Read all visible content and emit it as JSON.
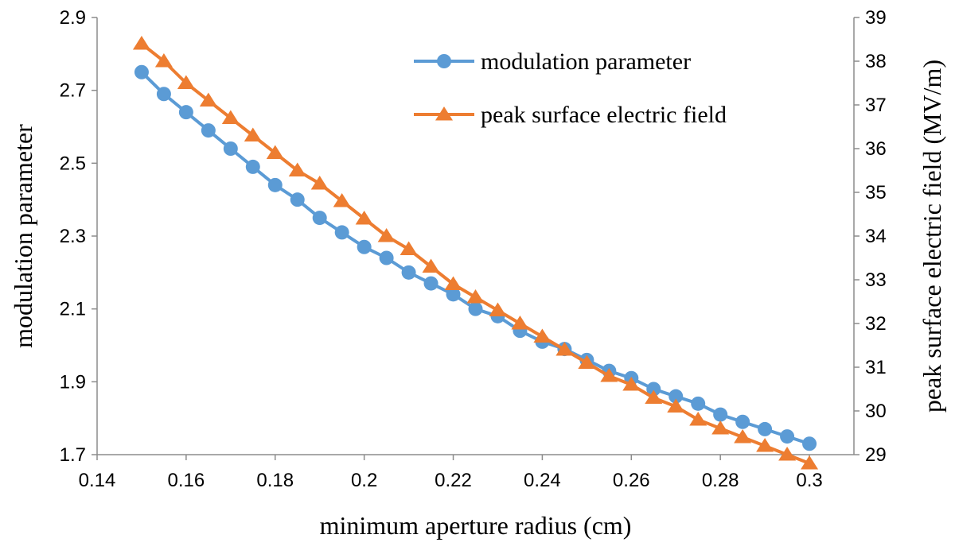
{
  "chart_data": {
    "type": "line",
    "title": "",
    "xlabel": "minimum aperture radius (cm)",
    "ylabel": "modulation parameter",
    "y2label": "peak surface electric field (MV/m)",
    "xlim": [
      0.14,
      0.31
    ],
    "ylim": [
      1.7,
      2.9
    ],
    "y2lim": [
      29,
      39
    ],
    "x_ticks": [
      0.14,
      0.16,
      0.18,
      0.2,
      0.22,
      0.24,
      0.26,
      0.28,
      0.3
    ],
    "x_tick_labels": [
      "0.14",
      "0.16",
      "0.18",
      "0.2",
      "0.22",
      "0.24",
      "0.26",
      "0.28",
      "0.3"
    ],
    "y_ticks": [
      1.7,
      1.9,
      2.1,
      2.3,
      2.5,
      2.7,
      2.9
    ],
    "y_tick_labels": [
      "1.7",
      "1.9",
      "2.1",
      "2.3",
      "2.5",
      "2.7",
      "2.9"
    ],
    "y2_ticks": [
      29,
      30,
      31,
      32,
      33,
      34,
      35,
      36,
      37,
      38,
      39
    ],
    "y2_tick_labels": [
      "29",
      "30",
      "31",
      "32",
      "33",
      "34",
      "35",
      "36",
      "37",
      "38",
      "39"
    ],
    "grid": false,
    "legend_position": "top-right",
    "x": [
      0.15,
      0.155,
      0.16,
      0.165,
      0.17,
      0.175,
      0.18,
      0.185,
      0.19,
      0.195,
      0.2,
      0.205,
      0.21,
      0.215,
      0.22,
      0.225,
      0.23,
      0.235,
      0.24,
      0.245,
      0.25,
      0.255,
      0.26,
      0.265,
      0.27,
      0.275,
      0.28,
      0.285,
      0.29,
      0.295,
      0.3
    ],
    "series": [
      {
        "name": "modulation parameter",
        "axis": "left",
        "color": "#5B9BD5",
        "marker": "circle",
        "values": [
          2.75,
          2.69,
          2.64,
          2.59,
          2.54,
          2.49,
          2.44,
          2.4,
          2.35,
          2.31,
          2.27,
          2.24,
          2.2,
          2.17,
          2.14,
          2.1,
          2.08,
          2.04,
          2.01,
          1.99,
          1.96,
          1.93,
          1.91,
          1.88,
          1.86,
          1.84,
          1.81,
          1.79,
          1.77,
          1.75,
          1.73
        ]
      },
      {
        "name": "peak surface electric field",
        "axis": "right",
        "color": "#ED7D31",
        "marker": "triangle",
        "values": [
          38.4,
          38.0,
          37.5,
          37.1,
          36.7,
          36.3,
          35.9,
          35.5,
          35.2,
          34.8,
          34.4,
          34.0,
          33.7,
          33.3,
          32.9,
          32.6,
          32.3,
          32.0,
          31.7,
          31.4,
          31.1,
          30.8,
          30.6,
          30.3,
          30.1,
          29.8,
          29.6,
          29.4,
          29.2,
          29.0,
          28.8
        ]
      }
    ]
  }
}
